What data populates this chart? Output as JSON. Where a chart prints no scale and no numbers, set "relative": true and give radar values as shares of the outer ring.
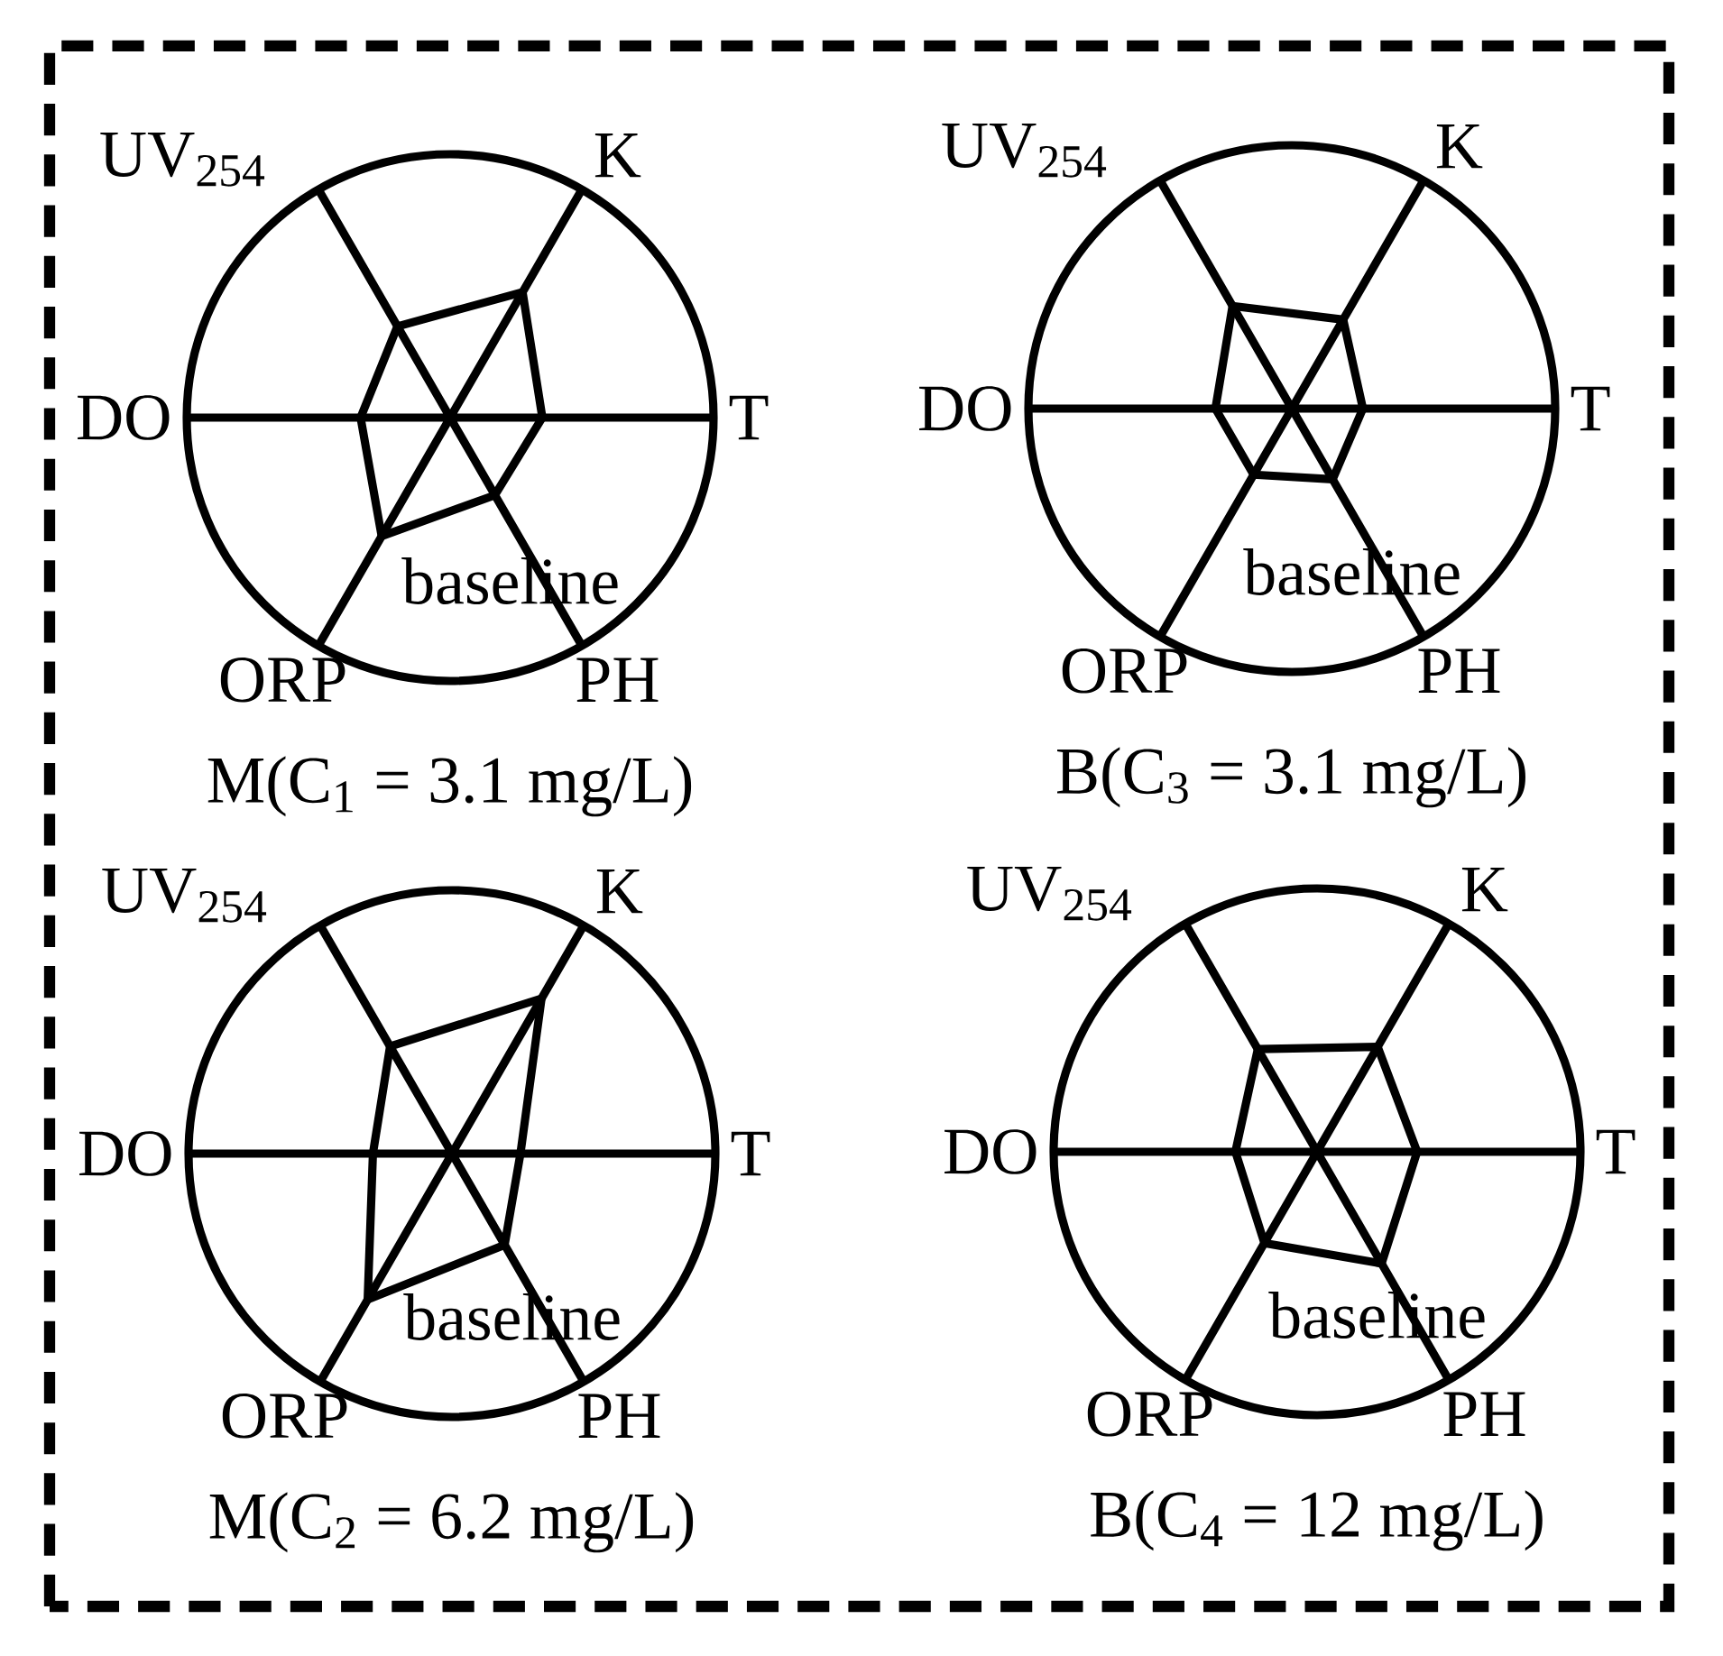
{
  "chart_data": [
    {
      "type": "radar",
      "title": "M(C$_{1}$ = 3.1 mg/L)",
      "categories": [
        "K",
        "T",
        "PH",
        "ORP",
        "DO",
        "UV$_{254}$"
      ],
      "relative": true,
      "annotations": [
        "baseline"
      ],
      "series": [
        {
          "color": "#000000",
          "values": [
            0.55,
            0.35,
            0.34,
            0.52,
            0.34,
            0.4
          ]
        }
      ]
    },
    {
      "type": "radar",
      "title": "B(C$_{3}$ = 3.1 mg/L)",
      "categories": [
        "K",
        "T",
        "PH",
        "ORP",
        "DO",
        "UV$_{254}$"
      ],
      "relative": true,
      "annotations": [
        "baseline"
      ],
      "series": [
        {
          "color": "#000000",
          "values": [
            0.39,
            0.27,
            0.31,
            0.29,
            0.29,
            0.45
          ]
        }
      ]
    },
    {
      "type": "radar",
      "title": "M(C$_{2}$ = 6.2 mg/L)",
      "categories": [
        "K",
        "T",
        "PH",
        "ORP",
        "DO",
        "UV$_{254}$"
      ],
      "relative": true,
      "annotations": [
        "baseline"
      ],
      "series": [
        {
          "color": "#000000",
          "values": [
            0.68,
            0.26,
            0.4,
            0.64,
            0.3,
            0.47
          ]
        }
      ]
    },
    {
      "type": "radar",
      "title": "B(C$_{4}$ = 12 mg/L)",
      "categories": [
        "K",
        "T",
        "PH",
        "ORP",
        "DO",
        "UV$_{254}$"
      ],
      "relative": true,
      "annotations": [
        "baseline"
      ],
      "series": [
        {
          "color": "#000000",
          "values": [
            0.46,
            0.38,
            0.49,
            0.4,
            0.31,
            0.45
          ]
        }
      ]
    }
  ]
}
